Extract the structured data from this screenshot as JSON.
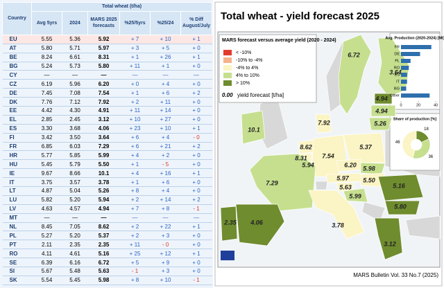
{
  "table": {
    "title": "Total wheat (t/ha)",
    "columns": [
      "Country",
      "Avg 5yrs",
      "2024",
      "MARS 2025 forecasts",
      "%25/5yrs",
      "%25/24",
      "% Diff August/July"
    ],
    "rows": [
      [
        "EU",
        "5.55",
        "5.36",
        "5.92",
        "+ 7",
        "+ 10",
        "+ 1"
      ],
      [
        "AT",
        "5.80",
        "5.71",
        "5.97",
        "+ 3",
        "+ 5",
        "+ 0"
      ],
      [
        "BE",
        "8.24",
        "6.61",
        "8.31",
        "+ 1",
        "+ 26",
        "+ 1"
      ],
      [
        "BG",
        "5.24",
        "5.73",
        "5.80",
        "+ 11",
        "+ 1",
        "+ 0"
      ],
      [
        "CY",
        "—",
        "—",
        "—",
        "—",
        "—",
        "—"
      ],
      [
        "CZ",
        "6.19",
        "5.96",
        "6.20",
        "+ 0",
        "+ 4",
        "+ 0"
      ],
      [
        "DE",
        "7.45",
        "7.08",
        "7.54",
        "+ 1",
        "+ 6",
        "+ 2"
      ],
      [
        "DK",
        "7.76",
        "7.12",
        "7.92",
        "+ 2",
        "+ 11",
        "+ 0"
      ],
      [
        "EE",
        "4.42",
        "4.30",
        "4.91",
        "+ 11",
        "+ 14",
        "+ 0"
      ],
      [
        "EL",
        "2.85",
        "2.45",
        "3.12",
        "+ 10",
        "+ 27",
        "+ 0"
      ],
      [
        "ES",
        "3.30",
        "3.68",
        "4.06",
        "+ 23",
        "+ 10",
        "+ 1"
      ],
      [
        "FI",
        "3.42",
        "3.50",
        "3.64",
        "+ 6",
        "+ 4",
        "- 0"
      ],
      [
        "FR",
        "6.85",
        "6.03",
        "7.29",
        "+ 6",
        "+ 21",
        "+ 2"
      ],
      [
        "HR",
        "5.77",
        "5.85",
        "5.99",
        "+ 4",
        "+ 2",
        "+ 0"
      ],
      [
        "HU",
        "5.45",
        "5.79",
        "5.50",
        "+ 1",
        "- 5",
        "+ 0"
      ],
      [
        "IE",
        "9.67",
        "8.66",
        "10.1",
        "+ 4",
        "+ 16",
        "+ 1"
      ],
      [
        "IT",
        "3.75",
        "3.57",
        "3.78",
        "+ 1",
        "+ 6",
        "+ 0"
      ],
      [
        "LT",
        "4.87",
        "5.04",
        "5.26",
        "+ 8",
        "+ 4",
        "+ 0"
      ],
      [
        "LU",
        "5.82",
        "5.20",
        "5.94",
        "+ 2",
        "+ 14",
        "+ 2"
      ],
      [
        "LV",
        "4.63",
        "4.57",
        "4.94",
        "+ 7",
        "+ 8",
        "- 1"
      ],
      [
        "MT",
        "—",
        "—",
        "—",
        "—",
        "—",
        "—"
      ],
      [
        "NL",
        "8.45",
        "7.05",
        "8.62",
        "+ 2",
        "+ 22",
        "+ 1"
      ],
      [
        "PL",
        "5.27",
        "5.20",
        "5.37",
        "+ 2",
        "+ 3",
        "+ 0"
      ],
      [
        "PT",
        "2.11",
        "2.35",
        "2.35",
        "+ 11",
        "- 0",
        "+ 0"
      ],
      [
        "RO",
        "4.11",
        "4.61",
        "5.16",
        "+ 25",
        "+ 12",
        "+ 1"
      ],
      [
        "SE",
        "6.39",
        "6.16",
        "6.72",
        "+ 5",
        "+ 9",
        "+ 0"
      ],
      [
        "SI",
        "5.67",
        "5.48",
        "5.63",
        "- 1",
        "+ 3",
        "+ 0"
      ],
      [
        "SK",
        "5.54",
        "5.45",
        "5.98",
        "+ 8",
        "+ 10",
        "- 1"
      ]
    ]
  },
  "map": {
    "title": "Total wheat - yield forecast 2025",
    "legend": {
      "title": "MARS forecast versus average yield (2020 - 2024)",
      "items": [
        {
          "label": "< -10%",
          "color": "#e23b2e"
        },
        {
          "label": "-10% to -4%",
          "color": "#f6b38a"
        },
        {
          "label": "-4% to 4%",
          "color": "#fbf4c4"
        },
        {
          "label": "4% to 10%",
          "color": "#c6df8f"
        },
        {
          "label": "> 10%",
          "color": "#6f8c2f"
        }
      ],
      "sample": "0.00",
      "sample_label": "yield forecast [t/ha]"
    },
    "regions": [
      {
        "label": "6.72",
        "color": "#c6df8f"
      },
      {
        "label": "3.64",
        "color": "#c6df8f"
      },
      {
        "label": "4.94",
        "color": "#6f8c2f"
      },
      {
        "label": "4.94",
        "color": "#c6df8f"
      },
      {
        "label": "5.26",
        "color": "#c6df8f"
      },
      {
        "label": "10.1",
        "color": "#c6df8f"
      },
      {
        "label": "7.92",
        "color": "#fbf4c4"
      },
      {
        "label": "8.62",
        "color": "#fbf4c4"
      },
      {
        "label": "8.31",
        "color": "#fbf4c4"
      },
      {
        "label": "5.94",
        "color": "#fbf4c4"
      },
      {
        "label": "7.54",
        "color": "#fbf4c4"
      },
      {
        "label": "5.37",
        "color": "#fbf4c4"
      },
      {
        "label": "6.20",
        "color": "#fbf4c4"
      },
      {
        "label": "5.98",
        "color": "#c6df8f"
      },
      {
        "label": "5.97",
        "color": "#fbf4c4"
      },
      {
        "label": "5.50",
        "color": "#fbf4c4"
      },
      {
        "label": "5.63",
        "color": "#fbf4c4"
      },
      {
        "label": "5.99",
        "color": "#c6df8f"
      },
      {
        "label": "7.29",
        "color": "#c6df8f"
      },
      {
        "label": "3.78",
        "color": "#fbf4c4"
      },
      {
        "label": "5.16",
        "color": "#6f8c2f"
      },
      {
        "label": "5.80",
        "color": "#6f8c2f"
      },
      {
        "label": "3.12",
        "color": "#6f8c2f"
      },
      {
        "label": "2.35",
        "color": "#6f8c2f"
      },
      {
        "label": "4.06",
        "color": "#6f8c2f"
      }
    ],
    "production": {
      "title": "Avg. Production (2020-2024) [Mt]",
      "categories": [
        "FR",
        "DE",
        "PL",
        "RO",
        "ES",
        "IT",
        "BG",
        "Other"
      ],
      "values": [
        35,
        22,
        11,
        9,
        7,
        7,
        6,
        33
      ],
      "color": "#2e6fae",
      "xlim": [
        0,
        40
      ],
      "xticks": [
        0,
        20,
        40
      ]
    },
    "share": {
      "title": "Share of production [%]",
      "values": [
        18,
        36,
        46
      ],
      "colors": [
        "#6f8c2f",
        "#c6df8f",
        "#fbf4c4"
      ]
    }
  },
  "footer": "MARS Bulletin Vol. 33 No.7 (2025)"
}
